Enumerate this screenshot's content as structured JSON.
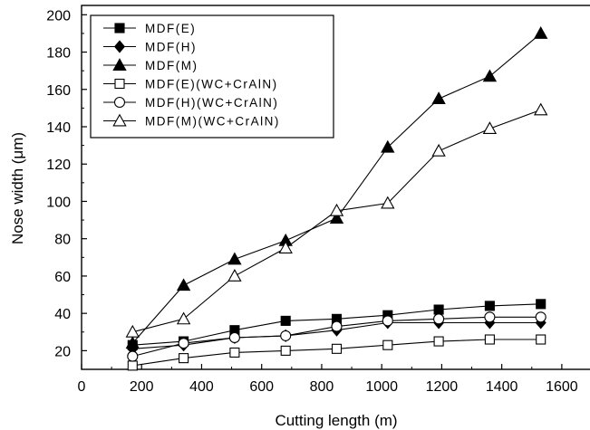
{
  "chart_data": {
    "type": "line",
    "title": "",
    "xlabel": "Cutting length (m)",
    "ylabel": "Nose width (μm)",
    "xlim": [
      0,
      1700
    ],
    "ylim": [
      10,
      205
    ],
    "xticks": [
      0,
      200,
      400,
      600,
      800,
      1000,
      1200,
      1400,
      1600
    ],
    "yticks": [
      20,
      40,
      60,
      80,
      100,
      120,
      140,
      160,
      180,
      200
    ],
    "grid": false,
    "legend_position": "top-left",
    "x": [
      170,
      340,
      510,
      680,
      850,
      1020,
      1190,
      1360,
      1530
    ],
    "series": [
      {
        "name": "MDF(E)",
        "marker": "square-filled",
        "values": [
          23,
          25,
          31,
          36,
          37,
          39,
          42,
          44,
          45
        ]
      },
      {
        "name": "MDF(H)",
        "marker": "diamond-filled",
        "values": [
          21,
          23,
          27,
          28,
          31,
          35,
          35,
          35,
          35
        ]
      },
      {
        "name": "MDF(M)",
        "marker": "triangle-filled",
        "values": [
          24,
          55,
          69,
          79,
          91,
          129,
          155,
          167,
          190
        ]
      },
      {
        "name": "MDF(E)(WC+CrAlN)",
        "marker": "square-open",
        "values": [
          12,
          16,
          19,
          20,
          21,
          23,
          25,
          26,
          26
        ]
      },
      {
        "name": "MDF(H)(WC+CrAlN)",
        "marker": "circle-open",
        "values": [
          17,
          24,
          27,
          28,
          33,
          36,
          37,
          38,
          38
        ]
      },
      {
        "name": "MDF(M)(WC+CrAlN)",
        "marker": "triangle-open",
        "values": [
          30,
          37,
          60,
          75,
          95,
          99,
          127,
          139,
          149
        ]
      }
    ]
  }
}
